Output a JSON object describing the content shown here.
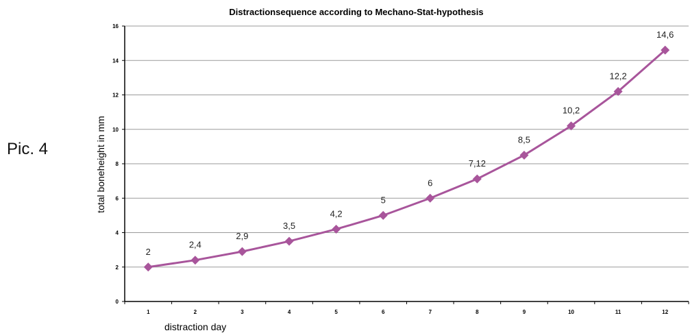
{
  "figure_label": "Pic. 4",
  "chart_data": {
    "type": "line",
    "title": "Distractionsequence according to Mechano-Stat-hypothesis",
    "xlabel": "distraction day",
    "ylabel": "total boneheight in mm",
    "categories": [
      "1",
      "2",
      "3",
      "4",
      "5",
      "6",
      "7",
      "8",
      "9",
      "10",
      "11",
      "12"
    ],
    "values": [
      2,
      2.4,
      2.9,
      3.5,
      4.2,
      5,
      6,
      7.12,
      8.5,
      10.2,
      12.2,
      14.6
    ],
    "data_labels": [
      "2",
      "2,4",
      "2,9",
      "3,5",
      "4,2",
      "5",
      "6",
      "7,12",
      "8,5",
      "10,2",
      "12,2",
      "14,6"
    ],
    "ylim": [
      0,
      16
    ],
    "yticks": [
      0,
      2,
      4,
      6,
      8,
      10,
      12,
      14,
      16
    ],
    "grid": true,
    "marker": "diamond",
    "colors": {
      "series": "#a8559b",
      "grid": "#9a9a9a",
      "axis": "#000000"
    }
  }
}
